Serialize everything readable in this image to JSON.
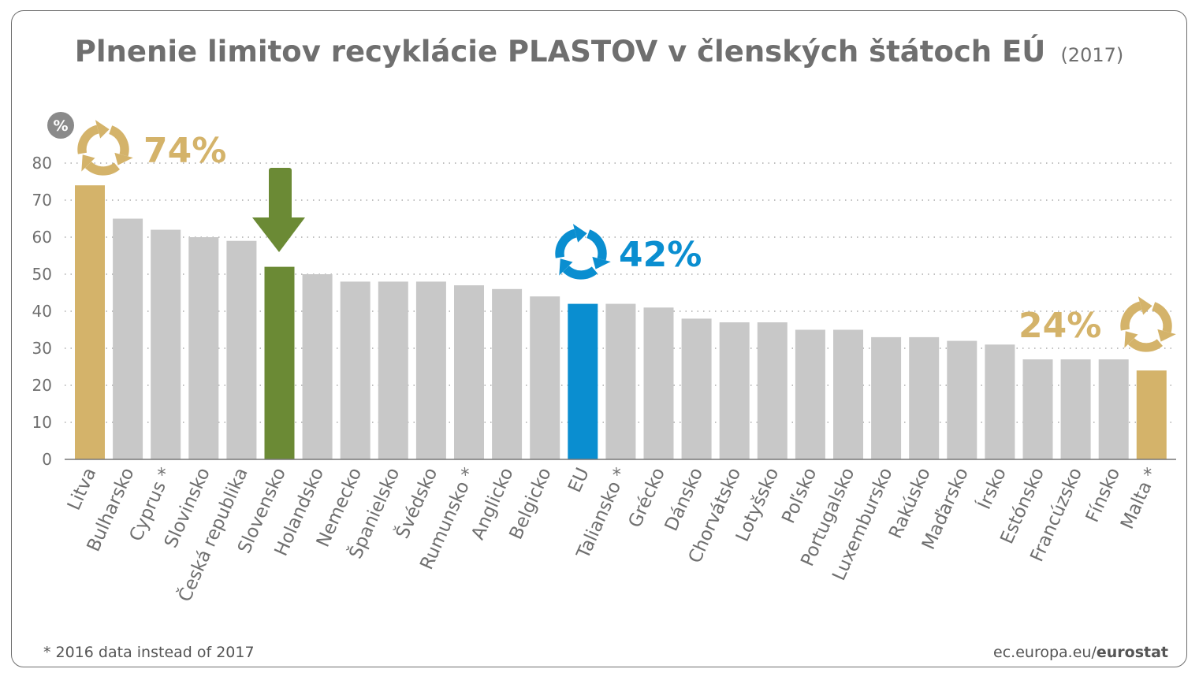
{
  "title": "Plnenie limitov recyklácie PLASTOV v členských štátoch EÚ",
  "subtitle": "(2017)",
  "y_unit_badge": "%",
  "footnote": "* 2016 data instead of 2017",
  "source": {
    "site": "ec.europa.eu/",
    "brand": "eurostat"
  },
  "colors": {
    "default": "#c8c8c8",
    "highlight_gold": "#d4b36a",
    "slovakia": "#6b8a35",
    "eu": "#0a8ed0",
    "text": "#6f6f6f"
  },
  "callouts": [
    {
      "text": "74%",
      "color": "#d4b36a",
      "icon": "recycle-icon"
    },
    {
      "text": "42%",
      "color": "#0a8ed0",
      "icon": "recycle-icon"
    },
    {
      "text": "24%",
      "color": "#d4b36a",
      "icon": "recycle-icon"
    }
  ],
  "chart_data": {
    "type": "bar",
    "title": "Plnenie limitov recyklácie PLASTOV v členských štátoch EÚ",
    "subtitle": "(2017)",
    "ylim": [
      0,
      80
    ],
    "yticks": [
      0,
      10,
      20,
      30,
      40,
      50,
      60,
      70,
      80
    ],
    "grid": true,
    "categories": [
      "Litva",
      "Bulharsko",
      "Cyprus *",
      "Slovinsko",
      "Česká republika",
      "Slovensko",
      "Holandsko",
      "Nemecko",
      "Španielsko",
      "Švédsko",
      "Rumunsko *",
      "Anglicko",
      "Belgicko",
      "EU",
      "Taliansko *",
      "Grécko",
      "Dánsko",
      "Chorvátsko",
      "Lotyšsko",
      "Poľsko",
      "Portugalsko",
      "Luxembursko",
      "Rakúsko",
      "Maďarsko",
      "Írsko",
      "Estónsko",
      "Francúzsko",
      "Fínsko",
      "Malta *"
    ],
    "values": [
      74,
      65,
      62,
      60,
      59,
      52,
      50,
      48,
      48,
      48,
      47,
      46,
      44,
      42,
      42,
      41,
      38,
      37,
      37,
      35,
      35,
      33,
      33,
      32,
      31,
      27,
      27,
      27,
      24
    ],
    "highlight": {
      "Litva": "gold",
      "Malta *": "gold",
      "Slovensko": "green",
      "EU": "blue"
    }
  }
}
